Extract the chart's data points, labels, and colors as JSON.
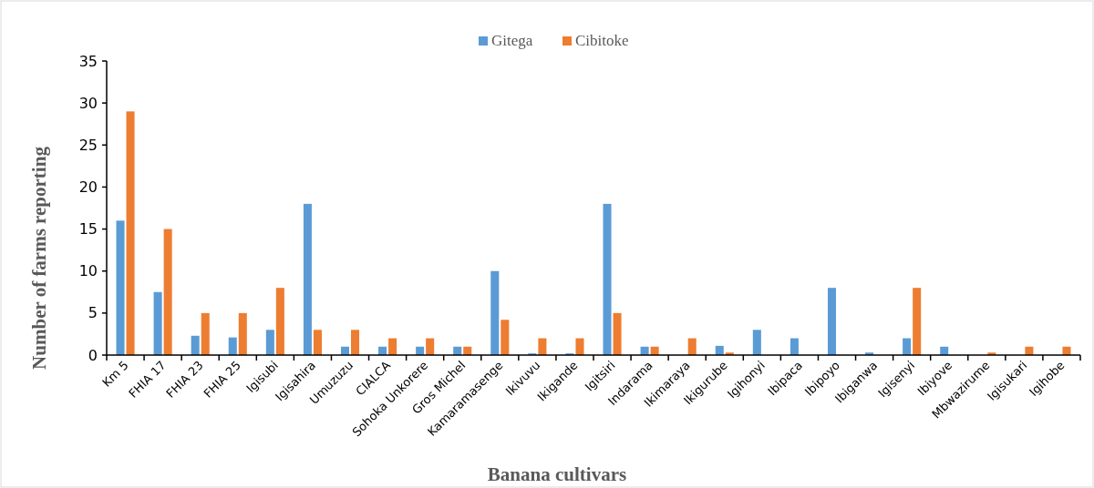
{
  "chart_data": {
    "type": "bar",
    "xlabel": "Banana cultivars",
    "ylabel": "Number of farms reporting",
    "categories": [
      "Km 5",
      "FHIA 17",
      "FHIA 23",
      "FHIA 25",
      "Igisubi",
      "Igisahira",
      "Umuzuzu",
      "CIALCA",
      "Sohoka Unkorere",
      "Gros Michel",
      "Kamaramasenge",
      "Ikivuvu",
      "Ikigande",
      "Igitsiri",
      "Indarama",
      "Ikimaraya",
      "Ikigurube",
      "Igihonyi",
      "Ibipaca",
      "Ibipoyo",
      "Ibiganwa",
      "Igisenyi",
      "Ibiyove",
      "Mbwazirume",
      "Igisukari",
      "Igihobe"
    ],
    "series": [
      {
        "name": "Gitega",
        "color": "#5b9bd5",
        "values": [
          16,
          7.5,
          2.3,
          2.1,
          3,
          18,
          1,
          1,
          1,
          1,
          10,
          0.2,
          0.2,
          18,
          1,
          0,
          1.1,
          3,
          2,
          8,
          0.3,
          2,
          1,
          0,
          0,
          0
        ]
      },
      {
        "name": "Cibitoke",
        "color": "#ed7d31",
        "values": [
          29,
          15,
          5,
          5,
          8,
          3,
          3,
          2,
          2,
          1,
          4.2,
          2,
          2,
          5,
          1,
          2,
          0.3,
          0,
          0,
          0,
          0,
          8,
          0,
          0.3,
          1,
          1
        ]
      }
    ],
    "ylim": [
      0,
      35
    ],
    "yticks": [
      0,
      5,
      10,
      15,
      20,
      25,
      30,
      35
    ],
    "grid": false,
    "legend": "top"
  }
}
